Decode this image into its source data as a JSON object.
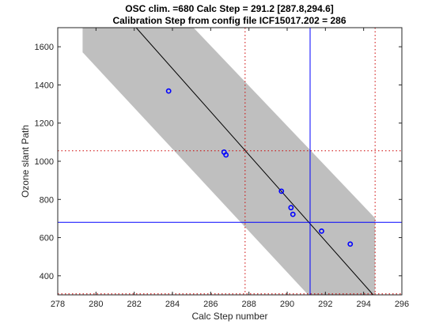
{
  "chart_data": {
    "type": "scatter",
    "title": "OSC clim. =680   Calc Step = 291.2 [287.8,294.6]",
    "subtitle": "Calibration Step from config file ICF15017.202 = 286",
    "xlabel": "Calc Step number",
    "ylabel": "Ozone slant Path",
    "xlim": [
      278,
      296
    ],
    "ylim": [
      300,
      1700
    ],
    "xticks": [
      278,
      280,
      282,
      284,
      286,
      288,
      290,
      292,
      294,
      296
    ],
    "yticks": [
      400,
      600,
      800,
      1000,
      1200,
      1400,
      1600
    ],
    "grid": false,
    "series": [
      {
        "marker": "circle",
        "color": "#0000ff",
        "points": [
          {
            "x": 283.8,
            "y": 1368
          },
          {
            "x": 286.7,
            "y": 1048
          },
          {
            "x": 286.8,
            "y": 1033
          },
          {
            "x": 289.7,
            "y": 843
          },
          {
            "x": 290.2,
            "y": 757
          },
          {
            "x": 290.3,
            "y": 722
          },
          {
            "x": 291.8,
            "y": 634
          },
          {
            "x": 293.3,
            "y": 566
          }
        ]
      }
    ],
    "fit_line": {
      "color": "#000000",
      "points": [
        {
          "x": 282.1,
          "y": 1700
        },
        {
          "x": 294.5,
          "y": 300
        }
      ]
    },
    "confidence_band": {
      "color": "#bfbfbf",
      "polygon": [
        {
          "x": 279.3,
          "y": 1700
        },
        {
          "x": 285.1,
          "y": 1700
        },
        {
          "x": 294.6,
          "y": 702
        },
        {
          "x": 294.6,
          "y": 300
        },
        {
          "x": 291.1,
          "y": 300
        },
        {
          "x": 279.3,
          "y": 1571
        }
      ]
    },
    "reference_lines": [
      {
        "orientation": "vertical",
        "value": 291.2,
        "style": "solid",
        "color": "#0000ff"
      },
      {
        "orientation": "horizontal",
        "value": 680,
        "style": "solid",
        "color": "#0000ff"
      },
      {
        "orientation": "vertical",
        "value": 287.8,
        "style": "dotted",
        "color": "#cc0000"
      },
      {
        "orientation": "vertical",
        "value": 294.6,
        "style": "dotted",
        "color": "#cc0000"
      },
      {
        "orientation": "horizontal",
        "value": 1055,
        "style": "dotted",
        "color": "#cc0000"
      },
      {
        "orientation": "horizontal",
        "value": 305,
        "style": "dotted",
        "color": "#cc0000"
      }
    ]
  }
}
